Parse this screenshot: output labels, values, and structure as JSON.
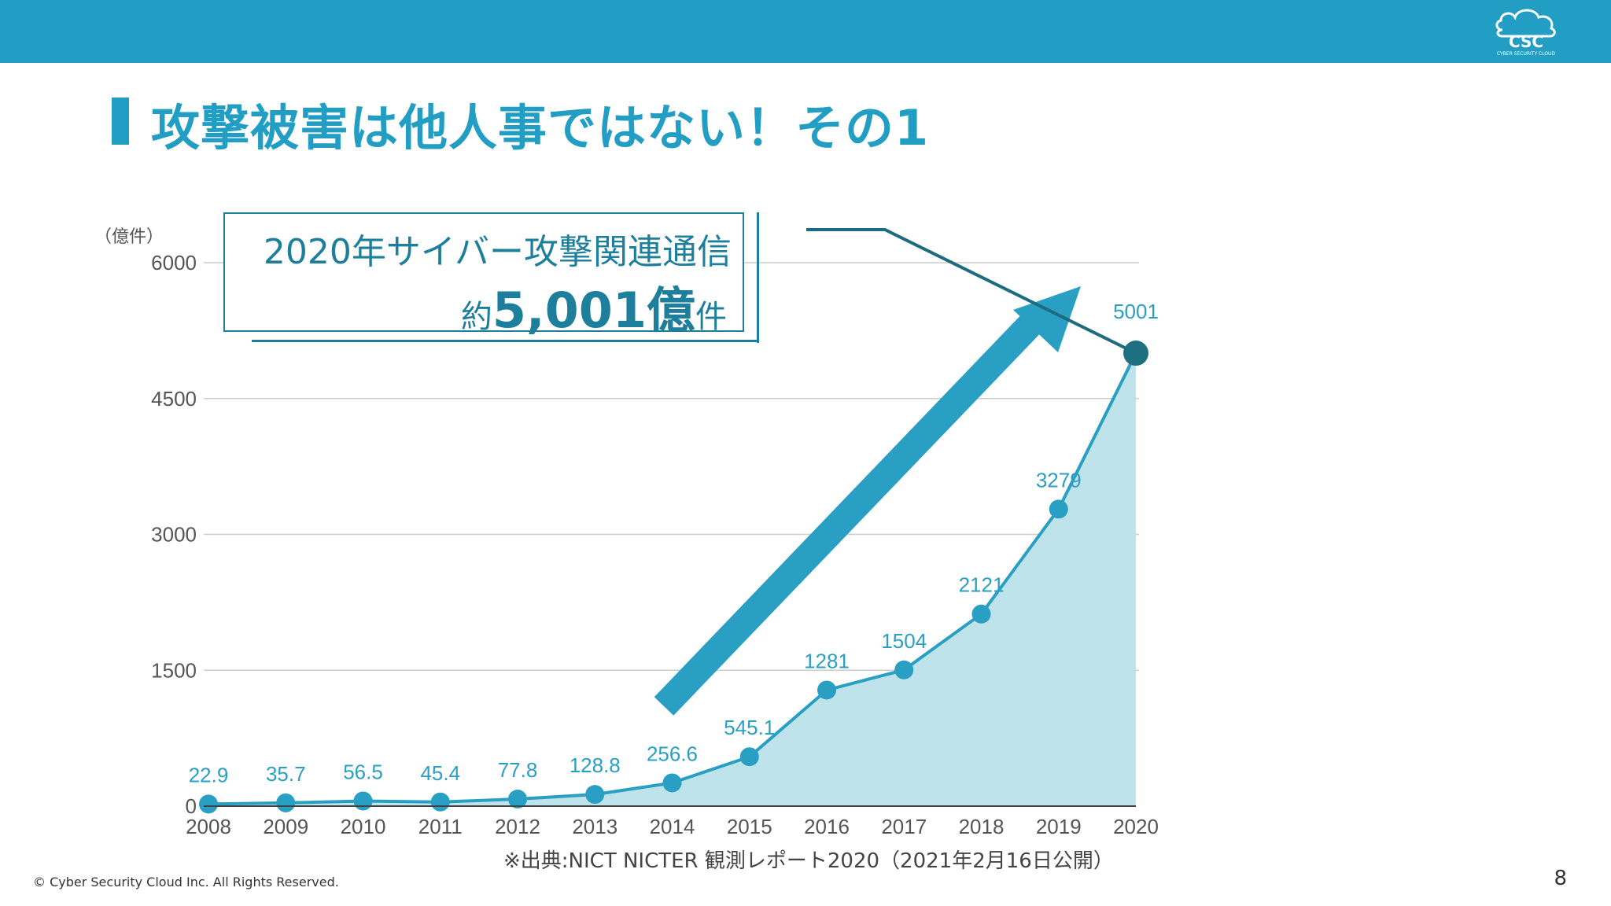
{
  "header": {
    "logo_text": "CSC",
    "logo_subtext": "CYBER SECURITY CLOUD"
  },
  "title": "攻撃被害は他人事ではない！その1",
  "callout": {
    "line1": "2020年サイバー攻撃関連通信",
    "prefix": "約",
    "value": "5,001億",
    "suffix": "件"
  },
  "chart_data": {
    "type": "area",
    "unit_label": "（億件）",
    "categories": [
      "2008",
      "2009",
      "2010",
      "2011",
      "2012",
      "2013",
      "2014",
      "2015",
      "2016",
      "2017",
      "2018",
      "2019",
      "2020"
    ],
    "values": [
      22.9,
      35.7,
      56.5,
      45.4,
      77.8,
      128.8,
      256.6,
      545.1,
      1281,
      1504,
      2121,
      3279,
      5001
    ],
    "value_labels": [
      "22.9",
      "35.7",
      "56.5",
      "45.4",
      "77.8",
      "128.8",
      "256.6",
      "545.1",
      "1281",
      "1504",
      "2121",
      "3279",
      "5001"
    ],
    "yticks": [
      0,
      1500,
      3000,
      4500,
      6000
    ],
    "ylim": [
      0,
      6000
    ],
    "grid": true,
    "colors": {
      "line": "#2a9fc4",
      "area": "#bfe3ea",
      "marker": "#2a9fc4",
      "last_marker": "#1e6f82",
      "label": "#2a9fc4",
      "arrow": "#2a9fc4"
    }
  },
  "source": "※出典:NICT NICTER 観測レポート2020（2021年2月16日公開）",
  "footer": {
    "copyright": "© Cyber Security Cloud Inc. All Rights Reserved.",
    "page_number": "8"
  }
}
